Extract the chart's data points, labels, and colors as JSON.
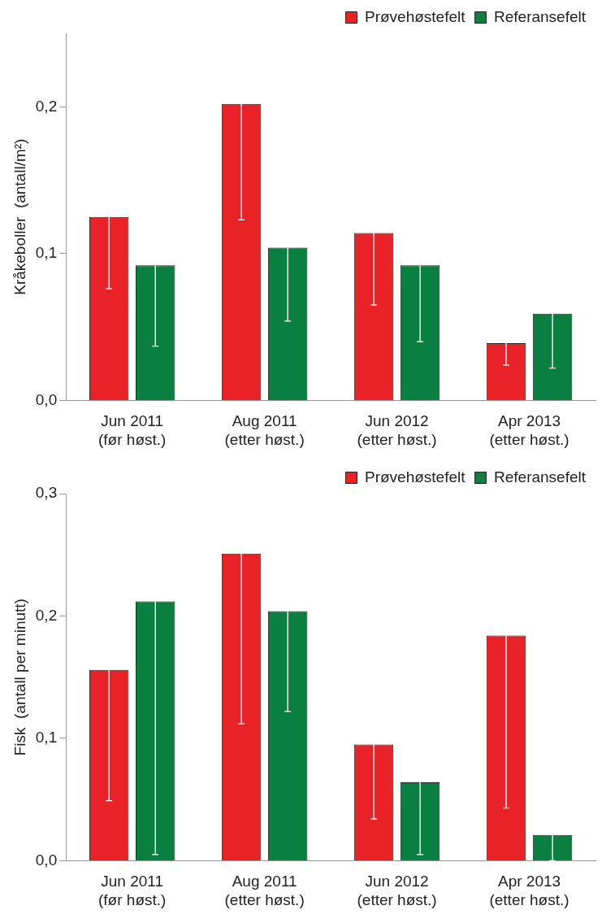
{
  "chart_data": [
    {
      "type": "bar",
      "ylabel": "Kråkeboller  (antall/m²)",
      "categories": [
        "Jun 2011\n(før høst.)",
        "Aug 2011\n(etter høst.)",
        "Jun 2012\n(etter høst.)",
        "Apr 2013\n(etter høst.)"
      ],
      "series": [
        {
          "name": "Prøvehøstefelt",
          "color": "#e92227",
          "values": [
            0.125,
            0.202,
            0.114,
            0.039
          ],
          "errors": [
            [
              0.076,
              0.125
            ],
            [
              0.123,
              0.202
            ],
            [
              0.065,
              0.114
            ],
            [
              0.024,
              0.039
            ]
          ]
        },
        {
          "name": "Referansefelt",
          "color": "#0a8040",
          "values": [
            0.092,
            0.104,
            0.092,
            0.059
          ],
          "errors": [
            [
              0.037,
              0.092
            ],
            [
              0.054,
              0.104
            ],
            [
              0.04,
              0.092
            ],
            [
              0.022,
              0.059
            ]
          ]
        }
      ],
      "ylim": [
        0,
        0.25
      ],
      "yticks": [
        {
          "value": 0,
          "label": "0,0"
        },
        {
          "value": 0.1,
          "label": "0,1"
        },
        {
          "value": 0.2,
          "label": "0,2"
        }
      ],
      "legend": "top right",
      "grid": false
    },
    {
      "type": "bar",
      "ylabel": "Fisk  (antall per minutt)",
      "categories": [
        "Jun 2011\n(før høst.)",
        "Aug 2011\n(etter høst.)",
        "Jun 2012\n(etter høst.)",
        "Apr 2013\n(etter høst.)"
      ],
      "series": [
        {
          "name": "Prøvehøstefelt",
          "color": "#e92227",
          "values": [
            0.156,
            0.251,
            0.095,
            0.184
          ],
          "errors": [
            [
              0.049,
              0.156
            ],
            [
              0.112,
              0.251
            ],
            [
              0.034,
              0.095
            ],
            [
              0.043,
              0.184
            ]
          ]
        },
        {
          "name": "Referansefelt",
          "color": "#0a8040",
          "values": [
            0.212,
            0.204,
            0.064,
            0.021
          ],
          "errors": [
            [
              0.005,
              0.212
            ],
            [
              0.122,
              0.204
            ],
            [
              0.005,
              0.064
            ],
            [
              0,
              0.021
            ]
          ]
        }
      ],
      "ylim": [
        0,
        0.3
      ],
      "yticks": [
        {
          "value": 0,
          "label": "0,0"
        },
        {
          "value": 0.1,
          "label": "0,1"
        },
        {
          "value": 0.2,
          "label": "0,2"
        },
        {
          "value": 0.3,
          "label": "0,3"
        }
      ],
      "legend": "top right",
      "grid": false
    }
  ]
}
